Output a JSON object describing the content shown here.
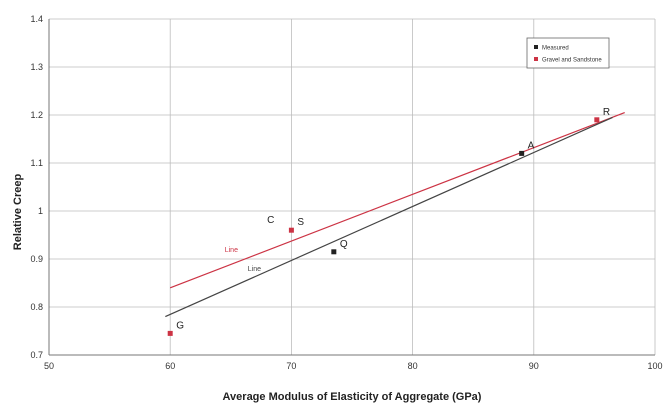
{
  "chart_data": {
    "type": "scatter",
    "title": "",
    "xlabel": "Average Modulus of Elasticity of Aggregate (GPa)",
    "ylabel": "Relative Creep",
    "xlim": [
      50,
      100
    ],
    "ylim": [
      0.7,
      1.4
    ],
    "x_ticks": [
      "50",
      "60",
      "70",
      "80",
      "90",
      "100"
    ],
    "y_ticks": [
      "0.7",
      "0.8",
      "0.9",
      "1",
      "1.1",
      "1.2",
      "1.3",
      "1.4"
    ],
    "grid": true,
    "legend_position": "top-right",
    "series": [
      {
        "name": "Measured",
        "color": "#222222",
        "points": [
          {
            "x": 89,
            "y": 1.12,
            "label": "A"
          },
          {
            "x": 73.5,
            "y": 0.915,
            "label": "Q"
          }
        ]
      },
      {
        "name": "Gravel and Sandstone",
        "color": "#cc3344",
        "points": [
          {
            "x": 95.2,
            "y": 1.19,
            "label": "R"
          },
          {
            "x": 70,
            "y": 0.96,
            "label": "S"
          },
          {
            "x": 60,
            "y": 0.745,
            "label": "G"
          }
        ]
      }
    ],
    "extra_labels": [
      {
        "text": "C",
        "x": 68.3,
        "y": 0.975
      }
    ],
    "fit_lines": [
      {
        "name": "Line",
        "color": "#cc3344",
        "x": [
          60,
          97.5
        ],
        "y": [
          0.84,
          1.205
        ],
        "label": "Line",
        "label_x": 64.5,
        "label_y": 0.915
      },
      {
        "name": "Line",
        "color": "#444444",
        "x": [
          59.6,
          96.5
        ],
        "y": [
          0.78,
          1.195
        ],
        "label": "Line",
        "label_x": 66.4,
        "label_y": 0.875
      }
    ]
  },
  "colors": {
    "grid": "#bcbcbc",
    "axis": "#777777",
    "measured": "#222222",
    "gravel": "#cc3344"
  }
}
